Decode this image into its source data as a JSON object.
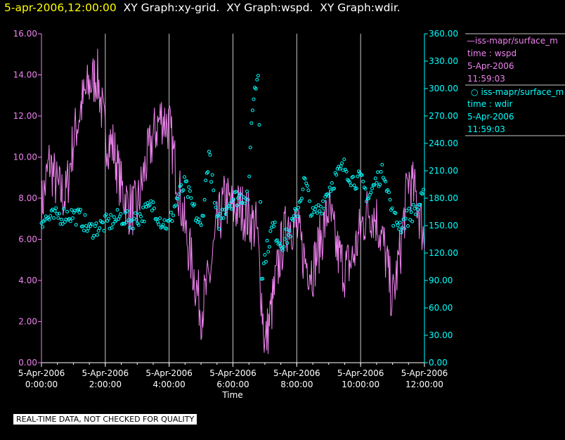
{
  "header": {
    "timestamp": "5-apr-2006,12:00:00",
    "titles": [
      "XY Graph:xy-grid.",
      "XY Graph:wspd.",
      "XY Graph:wdir."
    ]
  },
  "colors": {
    "wspd": "#ee82ee",
    "wdir": "#00ffff",
    "grid": "#c8c8c8",
    "bg": "#000000",
    "header_ts": "#ffff00"
  },
  "legend": [
    {
      "marker": "—",
      "name": "iss-mapr/surface_m",
      "var": "time : wspd",
      "date": "5-Apr-2006",
      "time": "11:59:03"
    },
    {
      "marker": "○",
      "name": "iss-mapr/surface_m",
      "var": "time : wdir",
      "date": "5-Apr-2006",
      "time": "11:59:03"
    }
  ],
  "chart_data": {
    "type": "line",
    "xlabel": "Time",
    "x_ticks": [
      {
        "date": "5-Apr-2006",
        "time": "0:00:00",
        "hour": 0
      },
      {
        "date": "5-Apr-2006",
        "time": "2:00:00",
        "hour": 2
      },
      {
        "date": "5-Apr-2006",
        "time": "4:00:00",
        "hour": 4
      },
      {
        "date": "5-Apr-2006",
        "time": "6:00:00",
        "hour": 6
      },
      {
        "date": "5-Apr-2006",
        "time": "8:00:00",
        "hour": 8
      },
      {
        "date": "5-Apr-2006",
        "time": "10:00:00",
        "hour": 10
      },
      {
        "date": "5-Apr-2006",
        "time": "12:00:00",
        "hour": 12
      }
    ],
    "xlim": [
      0,
      12
    ],
    "y_left": {
      "lim": [
        0,
        16
      ],
      "ticks": [
        "0.00",
        "2.00",
        "4.00",
        "6.00",
        "8.00",
        "10.00",
        "12.00",
        "14.00",
        "16.00"
      ]
    },
    "y_right": {
      "lim": [
        0,
        360
      ],
      "ticks": [
        "0.00",
        "30.00",
        "60.00",
        "90.00",
        "120.00",
        "150.00",
        "180.00",
        "210.00",
        "240.00",
        "270.00",
        "300.00",
        "330.00",
        "360.00"
      ]
    },
    "grid": "vertical",
    "series": [
      {
        "name": "time : wspd",
        "style": "line",
        "axis": "left",
        "x": [
          0,
          0.25,
          0.5,
          0.75,
          1,
          1.25,
          1.5,
          1.75,
          2,
          2.25,
          2.5,
          2.75,
          3,
          3.25,
          3.5,
          3.75,
          4,
          4.25,
          4.5,
          4.75,
          5,
          5.25,
          5.5,
          5.75,
          6,
          6.25,
          6.5,
          6.75,
          7,
          7.25,
          7.5,
          7.75,
          8,
          8.25,
          8.5,
          8.75,
          9,
          9.25,
          9.5,
          9.75,
          10,
          10.25,
          10.5,
          10.75,
          11,
          11.25,
          11.5,
          11.75,
          12
        ],
        "y": [
          7.5,
          9.8,
          8.5,
          8.0,
          10.8,
          12.5,
          13.5,
          14.0,
          11.0,
          10.5,
          8.5,
          7.5,
          7.5,
          9.5,
          11.0,
          12.0,
          11.5,
          9.0,
          6.5,
          4.5,
          2.5,
          4.0,
          6.5,
          8.0,
          7.5,
          7.5,
          7.0,
          6.5,
          0.8,
          3.0,
          5.5,
          7.0,
          6.5,
          5.0,
          4.5,
          6.0,
          7.5,
          5.5,
          4.5,
          5.0,
          6.5,
          7.5,
          7.0,
          5.5,
          3.0,
          5.5,
          9.0,
          8.0,
          6.0
        ],
        "noise": 1.4
      },
      {
        "name": "time : wdir",
        "style": "markers",
        "axis": "right",
        "x": [
          0,
          0.25,
          0.5,
          0.75,
          1,
          1.25,
          1.5,
          1.75,
          2,
          2.25,
          2.5,
          2.75,
          3,
          3.25,
          3.5,
          3.75,
          4,
          4.25,
          4.5,
          4.75,
          5,
          5.25,
          5.5,
          5.75,
          6,
          6.25,
          6.5,
          6.6,
          6.8,
          6.9,
          7,
          7.25,
          7.5,
          7.75,
          8,
          8.25,
          8.5,
          8.75,
          9,
          9.25,
          9.5,
          9.75,
          10,
          10.25,
          10.5,
          10.75,
          11,
          11.25,
          11.5,
          11.75,
          12
        ],
        "y": [
          157,
          158,
          160,
          162,
          162,
          158,
          145,
          148,
          152,
          155,
          160,
          155,
          158,
          165,
          172,
          155,
          150,
          180,
          195,
          170,
          145,
          230,
          150,
          170,
          180,
          182,
          185,
          280,
          320,
          90,
          115,
          150,
          130,
          140,
          165,
          200,
          160,
          170,
          190,
          205,
          215,
          200,
          200,
          180,
          200,
          210,
          160,
          150,
          160,
          168,
          182
        ],
        "noise": 10
      }
    ]
  },
  "footer": {
    "qc_note": "REAL-TIME DATA, NOT CHECKED FOR QUALITY"
  }
}
